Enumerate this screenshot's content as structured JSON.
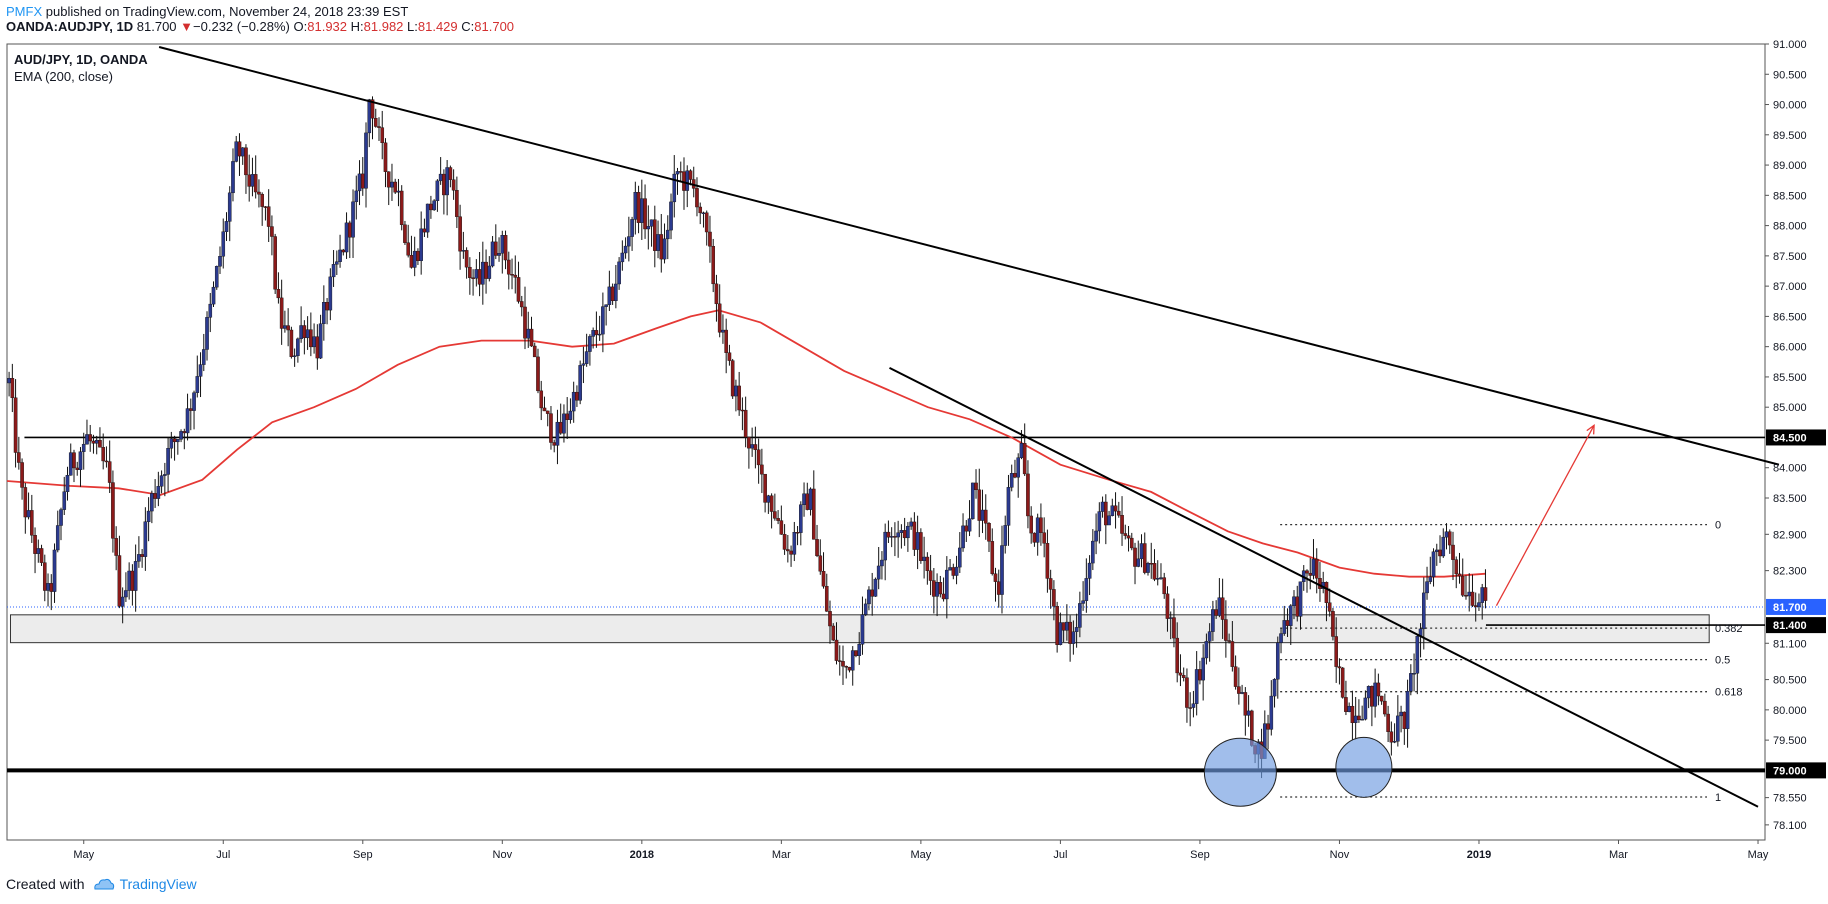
{
  "header": {
    "brand": "PMFX",
    "published": "published on TradingView.com, November 24, 2018 23:39 EST",
    "symbol": "OANDA:AUDJPY, 1D",
    "last": "81.700",
    "change_arrow": "▼",
    "change": "−0.232 (−0.28%)",
    "o_label": "O:",
    "o_val": "81.932",
    "h_label": "H:",
    "h_val": "81.982",
    "l_label": "L:",
    "l_val": "81.429",
    "c_label": "C:",
    "c_val": "81.700"
  },
  "footer": {
    "created_with": "Created with",
    "brand": "TradingView"
  },
  "colors": {
    "up": "#2b3a8f",
    "down": "#8b1a1a",
    "ema": "#e53935",
    "trend": "#000000",
    "blue_badge": "#2962ff",
    "zone": "#e6e6e6",
    "circle": "#6f9be0"
  },
  "chart_data": {
    "type": "candlestick",
    "title": "AUD/JPY, 1D, OANDA",
    "indicator": "EMA (200, close)",
    "ylim": [
      77.85,
      91.0
    ],
    "xlim": [
      -0.6,
      24.6
    ],
    "y_ticks": [
      "91.000",
      "90.500",
      "90.000",
      "89.500",
      "89.000",
      "88.500",
      "88.000",
      "87.500",
      "87.000",
      "86.500",
      "86.000",
      "85.500",
      "85.000",
      "84.000",
      "83.500",
      "82.900",
      "82.300",
      "81.100",
      "80.500",
      "80.000",
      "79.500",
      "78.550",
      "78.100"
    ],
    "x_ticks": [
      {
        "label": "May",
        "m": 0.5
      },
      {
        "label": "Jul",
        "m": 2.5
      },
      {
        "label": "Sep",
        "m": 4.5
      },
      {
        "label": "Nov",
        "m": 6.5
      },
      {
        "label": "2018",
        "m": 8.5
      },
      {
        "label": "Mar",
        "m": 10.5
      },
      {
        "label": "May",
        "m": 12.5
      },
      {
        "label": "Jul",
        "m": 14.5
      },
      {
        "label": "Sep",
        "m": 16.5
      },
      {
        "label": "Nov",
        "m": 18.5
      },
      {
        "label": "2019",
        "m": 20.5
      },
      {
        "label": "Mar",
        "m": 22.5
      },
      {
        "label": "May",
        "m": 24.5
      }
    ],
    "price_path": [
      [
        -0.57,
        85.4
      ],
      [
        -0.4,
        83.6
      ],
      [
        0.0,
        81.8
      ],
      [
        0.25,
        83.9
      ],
      [
        0.55,
        84.5
      ],
      [
        0.85,
        83.9
      ],
      [
        1.0,
        81.9
      ],
      [
        1.25,
        82.3
      ],
      [
        1.45,
        83.4
      ],
      [
        1.7,
        84.2
      ],
      [
        2.0,
        84.9
      ],
      [
        2.3,
        86.5
      ],
      [
        2.5,
        87.8
      ],
      [
        2.7,
        89.3
      ],
      [
        2.95,
        88.5
      ],
      [
        3.15,
        88.1
      ],
      [
        3.3,
        86.5
      ],
      [
        3.5,
        85.9
      ],
      [
        3.65,
        86.4
      ],
      [
        3.85,
        86.0
      ],
      [
        4.0,
        86.8
      ],
      [
        4.25,
        87.8
      ],
      [
        4.5,
        88.8
      ],
      [
        4.6,
        90.2
      ],
      [
        4.8,
        89.0
      ],
      [
        5.0,
        88.6
      ],
      [
        5.2,
        87.3
      ],
      [
        5.45,
        88.3
      ],
      [
        5.75,
        88.9
      ],
      [
        5.95,
        87.4
      ],
      [
        6.15,
        87.0
      ],
      [
        6.45,
        87.8
      ],
      [
        6.7,
        87.0
      ],
      [
        6.9,
        86.0
      ],
      [
        7.1,
        84.8
      ],
      [
        7.3,
        84.5
      ],
      [
        7.5,
        85.1
      ],
      [
        7.75,
        86.0
      ],
      [
        8.0,
        86.6
      ],
      [
        8.25,
        87.6
      ],
      [
        8.4,
        88.4
      ],
      [
        8.55,
        88.1
      ],
      [
        8.8,
        87.5
      ],
      [
        9.0,
        88.9
      ],
      [
        9.3,
        88.5
      ],
      [
        9.5,
        87.3
      ],
      [
        9.7,
        85.8
      ],
      [
        9.95,
        84.8
      ],
      [
        10.15,
        84.0
      ],
      [
        10.4,
        83.3
      ],
      [
        10.6,
        82.6
      ],
      [
        10.9,
        83.6
      ],
      [
        11.05,
        82.3
      ],
      [
        11.25,
        81.0
      ],
      [
        11.4,
        80.6
      ],
      [
        11.65,
        81.4
      ],
      [
        11.9,
        82.5
      ],
      [
        12.1,
        83.1
      ],
      [
        12.4,
        82.9
      ],
      [
        12.6,
        82.2
      ],
      [
        12.8,
        82.0
      ],
      [
        13.0,
        82.5
      ],
      [
        13.25,
        83.6
      ],
      [
        13.45,
        82.8
      ],
      [
        13.6,
        81.9
      ],
      [
        13.75,
        83.6
      ],
      [
        13.95,
        84.2
      ],
      [
        14.05,
        83.0
      ],
      [
        14.25,
        82.9
      ],
      [
        14.45,
        81.3
      ],
      [
        14.7,
        81.2
      ],
      [
        14.9,
        82.5
      ],
      [
        15.1,
        83.3
      ],
      [
        15.3,
        83.1
      ],
      [
        15.5,
        82.6
      ],
      [
        15.75,
        82.5
      ],
      [
        16.0,
        81.9
      ],
      [
        16.15,
        80.8
      ],
      [
        16.35,
        80.1
      ],
      [
        16.55,
        80.9
      ],
      [
        16.75,
        81.8
      ],
      [
        16.95,
        80.9
      ],
      [
        17.15,
        79.9
      ],
      [
        17.35,
        79.3
      ],
      [
        17.5,
        79.9
      ],
      [
        17.65,
        81.4
      ],
      [
        17.9,
        81.8
      ],
      [
        18.1,
        82.4
      ],
      [
        18.3,
        81.9
      ],
      [
        18.45,
        80.7
      ],
      [
        18.65,
        80.0
      ],
      [
        18.85,
        80.1
      ],
      [
        19.05,
        80.3
      ],
      [
        19.25,
        79.6
      ],
      [
        19.45,
        79.9
      ],
      [
        19.6,
        81.0
      ],
      [
        19.85,
        82.6
      ],
      [
        20.05,
        82.9
      ],
      [
        20.25,
        82.1
      ],
      [
        20.45,
        81.9
      ],
      [
        20.6,
        81.7
      ]
    ],
    "ema_points": [
      [
        -0.6,
        83.78
      ],
      [
        0.3,
        83.7
      ],
      [
        1.0,
        83.66
      ],
      [
        1.6,
        83.55
      ],
      [
        2.2,
        83.8
      ],
      [
        2.7,
        84.3
      ],
      [
        3.2,
        84.75
      ],
      [
        3.8,
        85.0
      ],
      [
        4.4,
        85.3
      ],
      [
        5.0,
        85.7
      ],
      [
        5.6,
        86.0
      ],
      [
        6.2,
        86.1
      ],
      [
        6.9,
        86.1
      ],
      [
        7.5,
        86.0
      ],
      [
        8.1,
        86.05
      ],
      [
        8.7,
        86.3
      ],
      [
        9.2,
        86.5
      ],
      [
        9.6,
        86.6
      ],
      [
        10.2,
        86.4
      ],
      [
        10.8,
        86.0
      ],
      [
        11.4,
        85.6
      ],
      [
        12.0,
        85.3
      ],
      [
        12.6,
        85.0
      ],
      [
        13.2,
        84.8
      ],
      [
        13.8,
        84.5
      ],
      [
        14.5,
        84.05
      ],
      [
        15.2,
        83.8
      ],
      [
        15.8,
        83.6
      ],
      [
        16.3,
        83.3
      ],
      [
        16.9,
        82.95
      ],
      [
        17.4,
        82.75
      ],
      [
        17.9,
        82.6
      ],
      [
        18.5,
        82.35
      ],
      [
        19.0,
        82.25
      ],
      [
        19.5,
        82.2
      ],
      [
        20.0,
        82.2
      ],
      [
        20.6,
        82.25
      ]
    ],
    "horizontal_levels": [
      {
        "price": 84.5,
        "label": "84.500",
        "from_m": -0.35
      },
      {
        "price": 79.0,
        "label": "79.000",
        "from_m": -0.6,
        "thick": true
      },
      {
        "price": 81.4,
        "label": "81.400",
        "from_m": 20.6
      }
    ],
    "current_price": {
      "price": 81.7,
      "label": "81.700"
    },
    "support_zone": {
      "x0": -0.55,
      "x1": 23.8,
      "y_top": 81.57,
      "y_bottom": 81.11
    },
    "trendlines": [
      {
        "name": "major-trendline",
        "p1": [
          1.58,
          90.95
        ],
        "p2": [
          24.8,
          84.05
        ]
      },
      {
        "name": "minor-trendline",
        "p1": [
          12.05,
          85.65
        ],
        "p2": [
          24.5,
          78.4
        ]
      }
    ],
    "projection_arrow": {
      "from": [
        20.75,
        81.72
      ],
      "to": [
        22.15,
        84.7
      ]
    },
    "fib_levels": [
      {
        "label": "0",
        "price": 83.06,
        "x0_m": 17.65
      },
      {
        "label": "0.382",
        "price": 81.35,
        "x0_m": 17.65
      },
      {
        "label": "0.5",
        "price": 80.83,
        "x0_m": 17.65
      },
      {
        "label": "0.618",
        "price": 80.3,
        "x0_m": 17.65
      },
      {
        "label": "1",
        "price": 78.56,
        "x0_m": 17.65
      }
    ],
    "circles": [
      {
        "name": "double-bottom-circle-left",
        "cm": 17.08,
        "cp": 78.97,
        "rx_px": 36,
        "ry_px": 34
      },
      {
        "name": "double-bottom-circle-right",
        "cm": 18.85,
        "cp": 79.05,
        "rx_px": 28,
        "ry_px": 30
      }
    ]
  }
}
